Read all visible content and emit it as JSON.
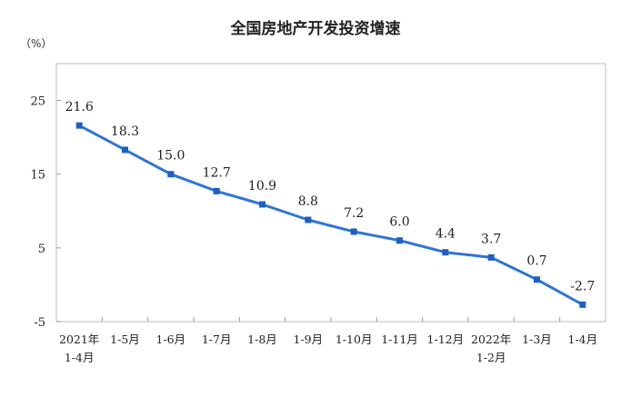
{
  "chart_data": {
    "type": "line",
    "title": "全国房地产开发投资增速",
    "unit_label": "（%）",
    "ylim": [
      -5,
      30
    ],
    "yticks": [
      {
        "value": 25,
        "label": "25"
      },
      {
        "value": 15,
        "label": "15"
      },
      {
        "value": 5,
        "label": "5"
      },
      {
        "value": -5,
        "label": "-5"
      }
    ],
    "categories": [
      {
        "line1": "2021年",
        "line2": "1-4月"
      },
      {
        "line1": "1-5月",
        "line2": ""
      },
      {
        "line1": "1-6月",
        "line2": ""
      },
      {
        "line1": "1-7月",
        "line2": ""
      },
      {
        "line1": "1-8月",
        "line2": ""
      },
      {
        "line1": "1-9月",
        "line2": ""
      },
      {
        "line1": "1-10月",
        "line2": ""
      },
      {
        "line1": "1-11月",
        "line2": ""
      },
      {
        "line1": "1-12月",
        "line2": ""
      },
      {
        "line1": "2022年",
        "line2": "1-2月"
      },
      {
        "line1": "1-3月",
        "line2": ""
      },
      {
        "line1": "1-4月",
        "line2": ""
      }
    ],
    "values": [
      21.6,
      18.3,
      15.0,
      12.7,
      10.9,
      8.8,
      7.2,
      6.0,
      4.4,
      3.7,
      0.7,
      -2.7
    ],
    "data_labels": [
      "21.6",
      "18.3",
      "15.0",
      "12.7",
      "10.9",
      "8.8",
      "7.2",
      "6.0",
      "4.4",
      "3.7",
      "0.7",
      "-2.7"
    ],
    "grid": false,
    "line_color": "#2e75d3"
  }
}
